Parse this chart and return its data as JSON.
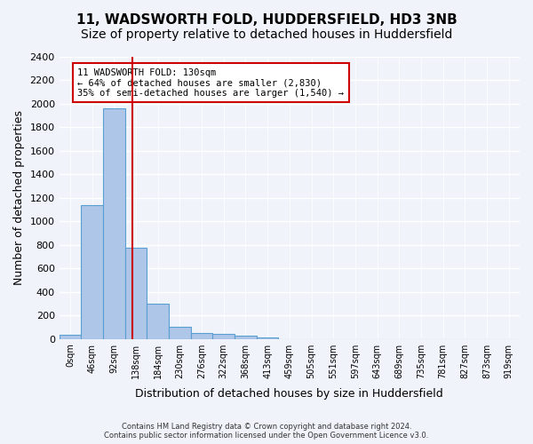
{
  "title": "11, WADSWORTH FOLD, HUDDERSFIELD, HD3 3NB",
  "subtitle": "Size of property relative to detached houses in Huddersfield",
  "xlabel": "Distribution of detached houses by size in Huddersfield",
  "ylabel": "Number of detached properties",
  "footer_line1": "Contains HM Land Registry data © Crown copyright and database right 2024.",
  "footer_line2": "Contains public sector information licensed under the Open Government Licence v3.0.",
  "bin_labels": [
    "0sqm",
    "46sqm",
    "92sqm",
    "138sqm",
    "184sqm",
    "230sqm",
    "276sqm",
    "322sqm",
    "368sqm",
    "413sqm",
    "459sqm",
    "505sqm",
    "551sqm",
    "597sqm",
    "643sqm",
    "689sqm",
    "735sqm",
    "781sqm",
    "827sqm",
    "873sqm",
    "919sqm"
  ],
  "bar_values": [
    35,
    1140,
    1960,
    775,
    300,
    105,
    47,
    40,
    25,
    15,
    0,
    0,
    0,
    0,
    0,
    0,
    0,
    0,
    0,
    0,
    0
  ],
  "bar_color": "#aec6e8",
  "bar_edge_color": "#5a9fd4",
  "ylim": [
    0,
    2400
  ],
  "yticks": [
    0,
    200,
    400,
    600,
    800,
    1000,
    1200,
    1400,
    1600,
    1800,
    2000,
    2200,
    2400
  ],
  "vline_x": 2.83,
  "vline_color": "#cc0000",
  "annotation_box_text": "11 WADSWORTH FOLD: 130sqm\n← 64% of detached houses are smaller (2,830)\n35% of semi-detached houses are larger (1,540) →",
  "background_color": "#f0f4fa",
  "plot_bg_color": "#f0f4fa",
  "grid_color": "#ffffff",
  "title_fontsize": 11,
  "subtitle_fontsize": 10,
  "xlabel_fontsize": 9,
  "ylabel_fontsize": 9
}
